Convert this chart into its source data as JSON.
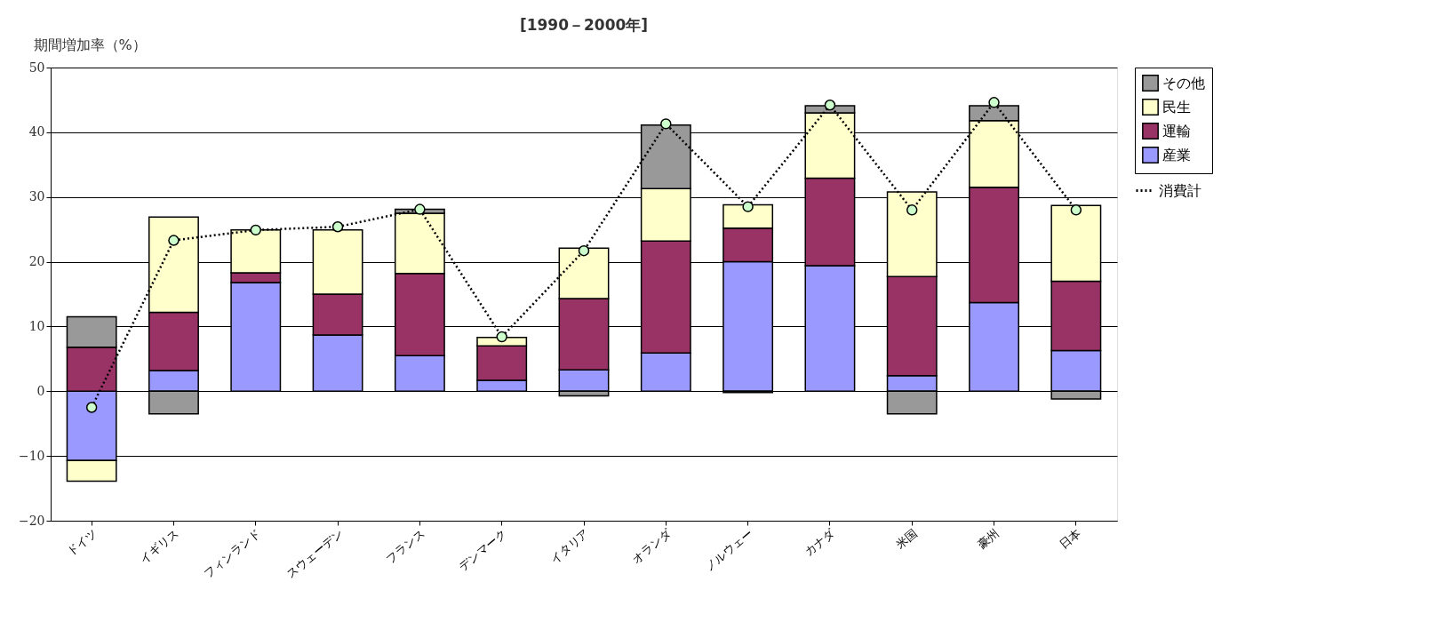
{
  "chart_data": {
    "type": "bar",
    "stacked": true,
    "title": "[1990－2000年]",
    "ylabel": "期間増加率（%）",
    "categories": [
      "ドイツ",
      "イギリス",
      "フィンランド",
      "スウェーデン",
      "フランス",
      "デンマーク",
      "イタリア",
      "オランダ",
      "ノルウェー",
      "カナダ",
      "米国",
      "豪州",
      "日本"
    ],
    "series": [
      {
        "name": "産業",
        "color": "#9999ff",
        "values": [
          -10.7,
          3.2,
          16.8,
          8.7,
          5.5,
          1.7,
          3.3,
          5.9,
          20.0,
          19.4,
          2.4,
          13.7,
          6.3
        ]
      },
      {
        "name": "運輸",
        "color": "#993366",
        "values": [
          6.8,
          9.0,
          1.5,
          6.3,
          12.7,
          5.3,
          11.0,
          17.3,
          5.2,
          13.5,
          15.3,
          17.8,
          10.7
        ]
      },
      {
        "name": "民生",
        "color": "#ffffcc",
        "values": [
          -3.2,
          14.7,
          6.6,
          9.9,
          9.3,
          1.3,
          7.8,
          8.1,
          3.6,
          10.1,
          13.1,
          10.3,
          11.7
        ]
      },
      {
        "name": "その他",
        "color": "#999999",
        "values": [
          4.7,
          -3.5,
          null,
          null,
          0.6,
          null,
          -0.7,
          9.8,
          -0.2,
          1.1,
          -3.5,
          2.3,
          -1.2
        ]
      },
      {
        "name": "消費計",
        "type": "line",
        "color": "#000000",
        "marker": "circle",
        "line_style": "dotted",
        "values": [
          -2.5,
          23.3,
          24.9,
          25.4,
          28.1,
          8.4,
          21.7,
          41.3,
          28.5,
          44.2,
          28.0,
          44.6,
          28.0
        ]
      }
    ],
    "ylim": [
      -20,
      50
    ],
    "yticks": [
      -20,
      -10,
      0,
      10,
      20,
      30,
      40,
      50
    ],
    "grid": "y",
    "legend": "right"
  }
}
